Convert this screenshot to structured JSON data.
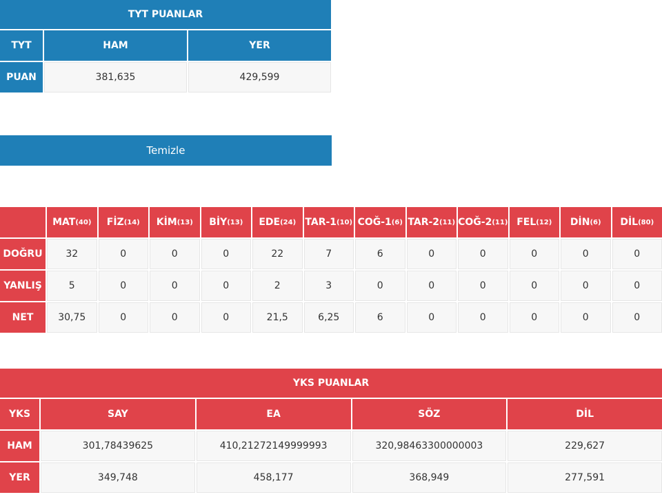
{
  "tyt": {
    "title": "TYT PUANLAR",
    "header": [
      "TYT",
      "HAM",
      "YER"
    ],
    "rows": [
      [
        "PUAN",
        "381,635",
        "429,599"
      ]
    ]
  },
  "button": {
    "label": "Temizle"
  },
  "subjects": {
    "header": [
      {
        "name": "MAT",
        "count": "(40)"
      },
      {
        "name": "FİZ",
        "count": "(14)"
      },
      {
        "name": "KİM",
        "count": "(13)"
      },
      {
        "name": "BİY",
        "count": "(13)"
      },
      {
        "name": "EDE",
        "count": "(24)"
      },
      {
        "name": "TAR-1",
        "count": "(10)"
      },
      {
        "name": "COĞ-1",
        "count": "(6)"
      },
      {
        "name": "TAR-2",
        "count": "(11)"
      },
      {
        "name": "COĞ-2",
        "count": "(11)"
      },
      {
        "name": "FEL",
        "count": "(12)"
      },
      {
        "name": "DİN",
        "count": "(6)"
      },
      {
        "name": "DİL",
        "count": "(80)"
      }
    ],
    "rows": [
      [
        "DOĞRU",
        "32",
        "0",
        "0",
        "0",
        "22",
        "7",
        "6",
        "0",
        "0",
        "0",
        "0",
        "0"
      ],
      [
        "YANLIŞ",
        "5",
        "0",
        "0",
        "0",
        "2",
        "3",
        "0",
        "0",
        "0",
        "0",
        "0",
        "0"
      ],
      [
        "NET",
        "30,75",
        "0",
        "0",
        "0",
        "21,5",
        "6,25",
        "6",
        "0",
        "0",
        "0",
        "0",
        "0"
      ]
    ]
  },
  "yks": {
    "title": "YKS PUANLAR",
    "header": [
      "YKS",
      "SAY",
      "EA",
      "SÖZ",
      "DİL"
    ],
    "rows": [
      [
        "HAM",
        "301,78439625",
        "410,21272149999993",
        "320,98463300000003",
        "229,627"
      ],
      [
        "YER",
        "349,748",
        "458,177",
        "368,949",
        "277,591"
      ]
    ]
  }
}
